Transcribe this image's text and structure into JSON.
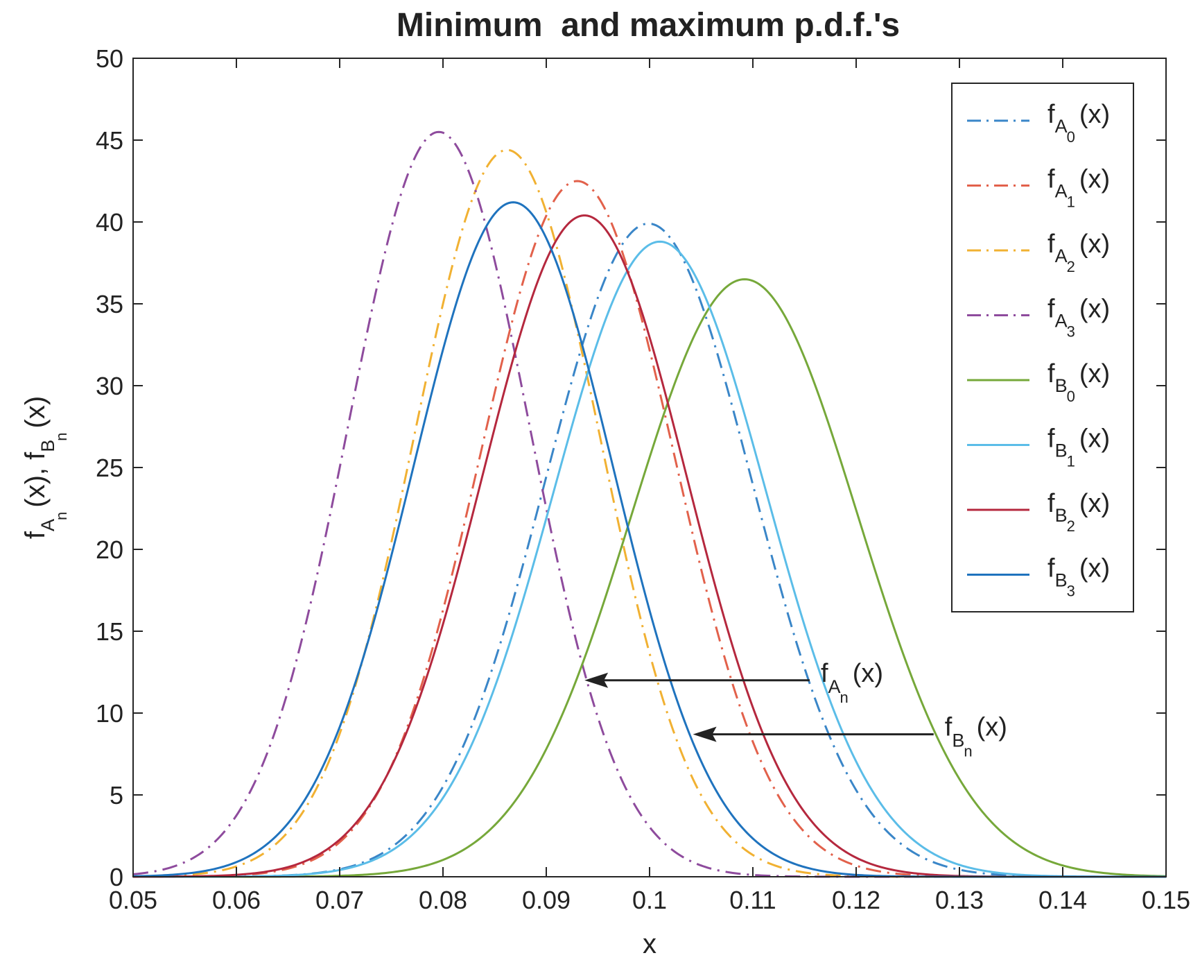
{
  "chart_data": {
    "type": "line",
    "title": "Minimum  and maximum p.d.f.'s",
    "xlabel": "x",
    "ylabel": {
      "f": "f",
      "A": "A",
      "n": "n",
      "mid": "(x), ",
      "f2": "f",
      "B": "B",
      "n2": "n",
      "end": "(x)"
    },
    "xlim": [
      0.05,
      0.15
    ],
    "ylim": [
      0,
      50
    ],
    "xticks": [
      "0.05",
      "0.06",
      "0.07",
      "0.08",
      "0.09",
      "0.1",
      "0.11",
      "0.12",
      "0.13",
      "0.14",
      "0.15"
    ],
    "yticks": [
      "0",
      "5",
      "10",
      "15",
      "20",
      "25",
      "30",
      "35",
      "40",
      "45",
      "50"
    ],
    "grid": false,
    "legend_position": "top-right",
    "series": [
      {
        "label": {
          "f": "f",
          "letter": "A",
          "sub": "0",
          "tail": "(x)"
        },
        "distribution": "normal",
        "mean": 0.0999,
        "peak": 39.9,
        "color": "#3a86c8",
        "style": "dashdot"
      },
      {
        "label": {
          "f": "f",
          "letter": "A",
          "sub": "1",
          "tail": "(x)"
        },
        "distribution": "normal",
        "mean": 0.093,
        "peak": 42.5,
        "color": "#e2614b",
        "style": "dashdot"
      },
      {
        "label": {
          "f": "f",
          "letter": "A",
          "sub": "2",
          "tail": "(x)"
        },
        "distribution": "normal",
        "mean": 0.0862,
        "peak": 44.4,
        "color": "#f1b132",
        "style": "dashdot"
      },
      {
        "label": {
          "f": "f",
          "letter": "A",
          "sub": "3",
          "tail": "(x)"
        },
        "distribution": "normal",
        "mean": 0.0796,
        "peak": 45.5,
        "color": "#8e4b9d",
        "style": "dashdot"
      },
      {
        "label": {
          "f": "f",
          "letter": "B",
          "sub": "0",
          "tail": "(x)"
        },
        "distribution": "normal",
        "mean": 0.1092,
        "peak": 36.5,
        "color": "#76a83a",
        "style": "solid"
      },
      {
        "label": {
          "f": "f",
          "letter": "B",
          "sub": "1",
          "tail": "(x)"
        },
        "distribution": "normal",
        "mean": 0.101,
        "peak": 38.8,
        "color": "#5bbde8",
        "style": "solid"
      },
      {
        "label": {
          "f": "f",
          "letter": "B",
          "sub": "2",
          "tail": "(x)"
        },
        "distribution": "normal",
        "mean": 0.0937,
        "peak": 40.4,
        "color": "#b5283e",
        "style": "solid"
      },
      {
        "label": {
          "f": "f",
          "letter": "B",
          "sub": "3",
          "tail": "(x)"
        },
        "distribution": "normal",
        "mean": 0.0868,
        "peak": 41.2,
        "color": "#1f73be",
        "style": "solid"
      }
    ],
    "annotations": [
      {
        "label": {
          "f": "f",
          "letter": "A",
          "sub": "n",
          "tail": "(x)"
        },
        "from": [
          0.1155,
          12.0
        ],
        "to": [
          0.0937,
          12.0
        ]
      },
      {
        "label": {
          "f": "f",
          "letter": "B",
          "sub": "n",
          "tail": "(x)"
        },
        "from": [
          0.1275,
          8.7
        ],
        "to": [
          0.1042,
          8.7
        ]
      }
    ]
  }
}
